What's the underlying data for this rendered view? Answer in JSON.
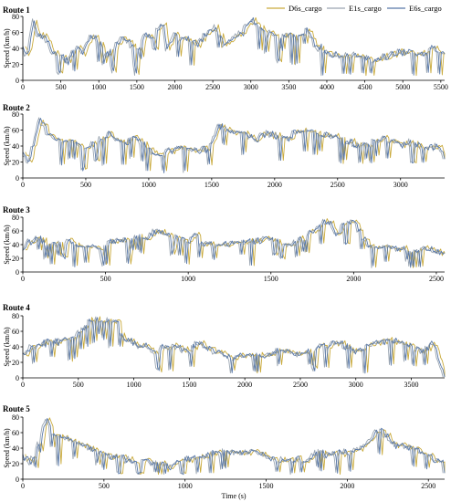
{
  "legend": [
    {
      "name": "D6s_cargo",
      "color": "#c9aa3c"
    },
    {
      "name": "E1s_cargo",
      "color": "#9aa5b1"
    },
    {
      "name": "E6s_cargo",
      "color": "#5878a8"
    }
  ],
  "xlabel": "Time (s)",
  "ylabel": "Speed (km/h)",
  "chart_data": [
    {
      "type": "line",
      "title": "Route 1",
      "xlim": [
        0,
        5550
      ],
      "ylim": [
        0,
        80
      ],
      "xticks": [
        0,
        500,
        1000,
        1500,
        2000,
        2500,
        3000,
        3500,
        4000,
        4500,
        5000,
        5500
      ],
      "yticks": [
        0,
        20,
        40,
        60,
        80
      ],
      "keypoints": [
        [
          0,
          40
        ],
        [
          60,
          30
        ],
        [
          110,
          55
        ],
        [
          150,
          75
        ],
        [
          200,
          55
        ],
        [
          300,
          55
        ],
        [
          400,
          35
        ],
        [
          500,
          30
        ],
        [
          600,
          25
        ],
        [
          700,
          40
        ],
        [
          800,
          35
        ],
        [
          900,
          55
        ],
        [
          1000,
          50
        ],
        [
          1100,
          30
        ],
        [
          1200,
          40
        ],
        [
          1300,
          55
        ],
        [
          1400,
          50
        ],
        [
          1500,
          35
        ],
        [
          1600,
          55
        ],
        [
          1700,
          55
        ],
        [
          1800,
          65
        ],
        [
          1850,
          75
        ],
        [
          1900,
          40
        ],
        [
          2000,
          55
        ],
        [
          2100,
          50
        ],
        [
          2200,
          50
        ],
        [
          2300,
          45
        ],
        [
          2450,
          60
        ],
        [
          2550,
          65
        ],
        [
          2650,
          45
        ],
        [
          2800,
          55
        ],
        [
          2900,
          60
        ],
        [
          3000,
          75
        ],
        [
          3100,
          70
        ],
        [
          3200,
          55
        ],
        [
          3300,
          60
        ],
        [
          3400,
          55
        ],
        [
          3500,
          55
        ],
        [
          3650,
          55
        ],
        [
          3750,
          65
        ],
        [
          3850,
          45
        ],
        [
          4000,
          35
        ],
        [
          4200,
          30
        ],
        [
          4400,
          30
        ],
        [
          4600,
          25
        ],
        [
          4800,
          30
        ],
        [
          5000,
          35
        ],
        [
          5200,
          30
        ],
        [
          5400,
          40
        ],
        [
          5550,
          35
        ]
      ]
    },
    {
      "type": "line",
      "title": "Route 2",
      "xlim": [
        0,
        3350
      ],
      "ylim": [
        0,
        80
      ],
      "xticks": [
        0,
        500,
        1000,
        1500,
        2000,
        2500,
        3000
      ],
      "yticks": [
        0,
        20,
        40,
        60,
        80
      ],
      "keypoints": [
        [
          0,
          30
        ],
        [
          50,
          20
        ],
        [
          90,
          40
        ],
        [
          140,
          75
        ],
        [
          200,
          55
        ],
        [
          300,
          50
        ],
        [
          400,
          45
        ],
        [
          500,
          35
        ],
        [
          600,
          45
        ],
        [
          700,
          55
        ],
        [
          800,
          45
        ],
        [
          900,
          50
        ],
        [
          1000,
          35
        ],
        [
          1100,
          30
        ],
        [
          1200,
          35
        ],
        [
          1300,
          40
        ],
        [
          1400,
          35
        ],
        [
          1480,
          35
        ],
        [
          1550,
          65
        ],
        [
          1650,
          60
        ],
        [
          1750,
          55
        ],
        [
          1850,
          50
        ],
        [
          1950,
          55
        ],
        [
          2100,
          50
        ],
        [
          2200,
          60
        ],
        [
          2300,
          55
        ],
        [
          2400,
          55
        ],
        [
          2500,
          50
        ],
        [
          2600,
          45
        ],
        [
          2700,
          40
        ],
        [
          2800,
          45
        ],
        [
          2900,
          50
        ],
        [
          3000,
          40
        ],
        [
          3100,
          45
        ],
        [
          3200,
          35
        ],
        [
          3300,
          40
        ],
        [
          3350,
          25
        ]
      ]
    },
    {
      "type": "line",
      "title": "Route 3",
      "xlim": [
        0,
        2550
      ],
      "ylim": [
        0,
        80
      ],
      "xticks": [
        0,
        500,
        1000,
        1500,
        2000,
        2500
      ],
      "yticks": [
        0,
        20,
        40,
        60,
        80
      ],
      "keypoints": [
        [
          0,
          30
        ],
        [
          40,
          45
        ],
        [
          100,
          48
        ],
        [
          180,
          40
        ],
        [
          250,
          45
        ],
        [
          350,
          40
        ],
        [
          450,
          35
        ],
        [
          550,
          45
        ],
        [
          650,
          45
        ],
        [
          700,
          55
        ],
        [
          760,
          50
        ],
        [
          800,
          60
        ],
        [
          880,
          55
        ],
        [
          950,
          50
        ],
        [
          1000,
          45
        ],
        [
          1050,
          55
        ],
        [
          1100,
          40
        ],
        [
          1200,
          40
        ],
        [
          1300,
          45
        ],
        [
          1400,
          45
        ],
        [
          1500,
          50
        ],
        [
          1600,
          40
        ],
        [
          1700,
          50
        ],
        [
          1750,
          60
        ],
        [
          1800,
          70
        ],
        [
          1850,
          75
        ],
        [
          1900,
          55
        ],
        [
          1950,
          70
        ],
        [
          2000,
          75
        ],
        [
          2050,
          55
        ],
        [
          2100,
          35
        ],
        [
          2200,
          35
        ],
        [
          2300,
          35
        ],
        [
          2400,
          30
        ],
        [
          2450,
          35
        ],
        [
          2550,
          25
        ]
      ]
    },
    {
      "type": "line",
      "title": "Route 4",
      "xlim": [
        0,
        3800
      ],
      "ylim": [
        0,
        80
      ],
      "xticks": [
        0,
        500,
        1000,
        1500,
        2000,
        2500,
        3000,
        3500
      ],
      "yticks": [
        0,
        20,
        40,
        60,
        80
      ],
      "keypoints": [
        [
          0,
          30
        ],
        [
          80,
          40
        ],
        [
          200,
          45
        ],
        [
          300,
          45
        ],
        [
          400,
          50
        ],
        [
          500,
          55
        ],
        [
          600,
          75
        ],
        [
          700,
          75
        ],
        [
          800,
          75
        ],
        [
          870,
          75
        ],
        [
          900,
          50
        ],
        [
          1000,
          45
        ],
        [
          1100,
          40
        ],
        [
          1200,
          35
        ],
        [
          1300,
          40
        ],
        [
          1400,
          40
        ],
        [
          1500,
          35
        ],
        [
          1600,
          45
        ],
        [
          1700,
          35
        ],
        [
          1800,
          30
        ],
        [
          1900,
          25
        ],
        [
          2000,
          30
        ],
        [
          2100,
          30
        ],
        [
          2200,
          30
        ],
        [
          2300,
          35
        ],
        [
          2400,
          35
        ],
        [
          2500,
          30
        ],
        [
          2600,
          35
        ],
        [
          2700,
          40
        ],
        [
          2800,
          45
        ],
        [
          2850,
          45
        ],
        [
          2900,
          40
        ],
        [
          3000,
          35
        ],
        [
          3100,
          40
        ],
        [
          3200,
          45
        ],
        [
          3300,
          50
        ],
        [
          3400,
          45
        ],
        [
          3500,
          40
        ],
        [
          3600,
          35
        ],
        [
          3700,
          45
        ],
        [
          3800,
          5
        ]
      ]
    },
    {
      "type": "line",
      "title": "Route 5",
      "xlim": [
        0,
        2600
      ],
      "ylim": [
        0,
        80
      ],
      "xticks": [
        0,
        500,
        1000,
        1500,
        2000,
        2500
      ],
      "yticks": [
        0,
        20,
        40,
        60,
        80
      ],
      "keypoints": [
        [
          0,
          30
        ],
        [
          50,
          20
        ],
        [
          100,
          45
        ],
        [
          150,
          78
        ],
        [
          200,
          55
        ],
        [
          300,
          50
        ],
        [
          400,
          40
        ],
        [
          500,
          35
        ],
        [
          550,
          30
        ],
        [
          650,
          25
        ],
        [
          750,
          25
        ],
        [
          850,
          20
        ],
        [
          900,
          15
        ],
        [
          1000,
          25
        ],
        [
          1100,
          30
        ],
        [
          1200,
          35
        ],
        [
          1300,
          35
        ],
        [
          1400,
          35
        ],
        [
          1450,
          35
        ],
        [
          1550,
          25
        ],
        [
          1650,
          25
        ],
        [
          1750,
          25
        ],
        [
          1800,
          35
        ],
        [
          1900,
          30
        ],
        [
          2000,
          35
        ],
        [
          2100,
          40
        ],
        [
          2150,
          55
        ],
        [
          2200,
          65
        ],
        [
          2300,
          45
        ],
        [
          2400,
          40
        ],
        [
          2500,
          30
        ],
        [
          2600,
          20
        ]
      ]
    }
  ]
}
